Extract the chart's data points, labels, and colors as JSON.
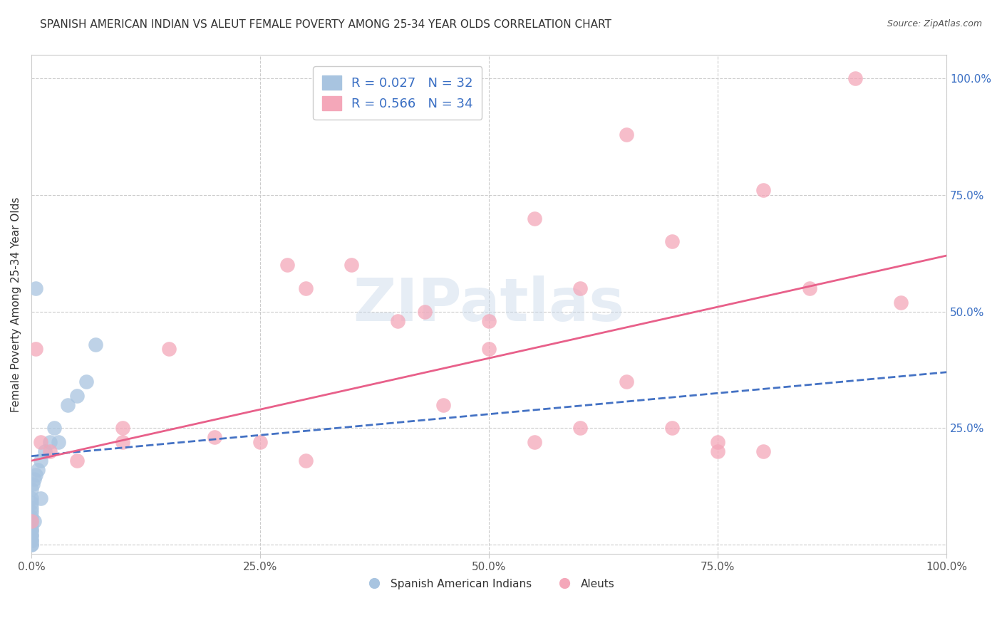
{
  "title": "SPANISH AMERICAN INDIAN VS ALEUT FEMALE POVERTY AMONG 25-34 YEAR OLDS CORRELATION CHART",
  "source": "Source: ZipAtlas.com",
  "ylabel": "Female Poverty Among 25-34 Year Olds",
  "xlim": [
    0,
    1.0
  ],
  "ylim": [
    -0.02,
    1.05
  ],
  "xticks": [
    0.0,
    0.25,
    0.5,
    0.75,
    1.0
  ],
  "yticks": [
    0.0,
    0.25,
    0.5,
    0.75,
    1.0
  ],
  "xticklabels": [
    "0.0%",
    "25.0%",
    "50.0%",
    "75.0%",
    "100.0%"
  ],
  "yticklabels_right": [
    "",
    "25.0%",
    "50.0%",
    "75.0%",
    "100.0%"
  ],
  "blue_R": 0.027,
  "blue_N": 32,
  "pink_R": 0.566,
  "pink_N": 34,
  "blue_color": "#a8c4e0",
  "pink_color": "#f4a7b9",
  "blue_line_color": "#4472c4",
  "pink_line_color": "#e8608a",
  "legend_label_blue": "Spanish American Indians",
  "legend_label_pink": "Aleuts",
  "watermark": "ZIPatlas",
  "blue_x": [
    0.0,
    0.0,
    0.0,
    0.0,
    0.0,
    0.0,
    0.0,
    0.0,
    0.0,
    0.0,
    0.0,
    0.0,
    0.0,
    0.0,
    0.0,
    0.0,
    0.002,
    0.003,
    0.005,
    0.007,
    0.01,
    0.015,
    0.02,
    0.025,
    0.04,
    0.05,
    0.06,
    0.07,
    0.03,
    0.01,
    0.005,
    0.003
  ],
  "blue_y": [
    0.0,
    0.0,
    0.01,
    0.01,
    0.02,
    0.02,
    0.03,
    0.03,
    0.04,
    0.05,
    0.06,
    0.07,
    0.08,
    0.09,
    0.1,
    0.12,
    0.13,
    0.14,
    0.15,
    0.16,
    0.18,
    0.2,
    0.22,
    0.25,
    0.3,
    0.32,
    0.35,
    0.43,
    0.22,
    0.1,
    0.55,
    0.05
  ],
  "pink_x": [
    0.0,
    0.005,
    0.01,
    0.02,
    0.05,
    0.1,
    0.15,
    0.2,
    0.28,
    0.35,
    0.4,
    0.43,
    0.5,
    0.55,
    0.6,
    0.65,
    0.7,
    0.75,
    0.8,
    0.85,
    0.9,
    0.95,
    0.1,
    0.25,
    0.3,
    0.45,
    0.55,
    0.65,
    0.7,
    0.75,
    0.3,
    0.5,
    0.6,
    0.8
  ],
  "pink_y": [
    0.05,
    0.42,
    0.22,
    0.2,
    0.18,
    0.22,
    0.42,
    0.23,
    0.6,
    0.6,
    0.48,
    0.5,
    0.48,
    0.7,
    0.55,
    0.88,
    0.65,
    0.2,
    0.76,
    0.55,
    1.0,
    0.52,
    0.25,
    0.22,
    0.18,
    0.3,
    0.22,
    0.35,
    0.25,
    0.22,
    0.55,
    0.42,
    0.25,
    0.2
  ],
  "blue_line_x": [
    0.0,
    1.0
  ],
  "blue_line_y": [
    0.19,
    0.37
  ],
  "pink_line_x": [
    0.0,
    1.0
  ],
  "pink_line_y": [
    0.18,
    0.62
  ],
  "background_color": "#ffffff",
  "grid_color": "#cccccc",
  "title_fontsize": 11,
  "axis_label_fontsize": 11,
  "tick_fontsize": 11,
  "legend_fontsize": 13,
  "right_tick_color": "#3a6fc4"
}
